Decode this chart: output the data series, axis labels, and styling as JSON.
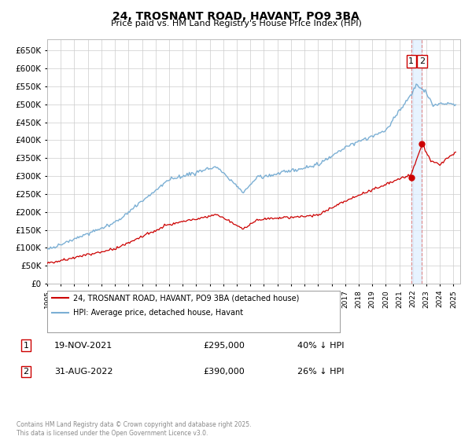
{
  "title": "24, TROSNANT ROAD, HAVANT, PO9 3BA",
  "subtitle": "Price paid vs. HM Land Registry's House Price Index (HPI)",
  "legend_line1": "24, TROSNANT ROAD, HAVANT, PO9 3BA (detached house)",
  "legend_line2": "HPI: Average price, detached house, Havant",
  "transaction1_date": "19-NOV-2021",
  "transaction1_price": 295000,
  "transaction1_note": "40% ↓ HPI",
  "transaction2_date": "31-AUG-2022",
  "transaction2_price": 390000,
  "transaction2_note": "26% ↓ HPI",
  "hpi_color": "#7BAFD4",
  "price_color": "#cc0000",
  "vline_color": "#dd8888",
  "shade_color": "#ddeeff",
  "footer": "Contains HM Land Registry data © Crown copyright and database right 2025.\nThis data is licensed under the Open Government Licence v3.0.",
  "ylim": [
    0,
    680000
  ],
  "yticks": [
    0,
    50000,
    100000,
    150000,
    200000,
    250000,
    300000,
    350000,
    400000,
    450000,
    500000,
    550000,
    600000,
    650000
  ]
}
